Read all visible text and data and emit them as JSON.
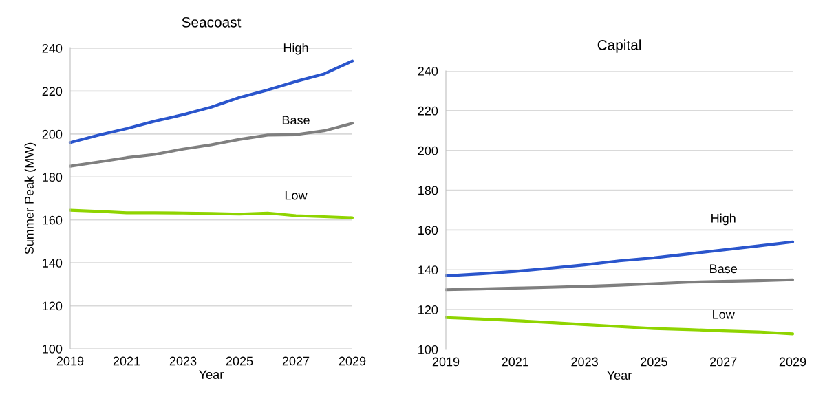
{
  "chart_data": [
    {
      "type": "line",
      "title": "Seacoast",
      "xlabel": "Year",
      "ylabel": "Summer Peak (MW)",
      "x": [
        2019,
        2020,
        2021,
        2022,
        2023,
        2024,
        2025,
        2026,
        2027,
        2028,
        2029
      ],
      "series": [
        {
          "name": "High",
          "color": "#2a55cc",
          "values": [
            196,
            199.5,
            202.5,
            206,
            209,
            212.5,
            217,
            220.5,
            224.5,
            228,
            234
          ]
        },
        {
          "name": "Base",
          "color": "#7f7f7f",
          "values": [
            185,
            187,
            189,
            190.5,
            193,
            195,
            197.5,
            199.5,
            199.7,
            201.5,
            205
          ]
        },
        {
          "name": "Low",
          "color": "#8fd400",
          "values": [
            164.5,
            164,
            163.3,
            163.3,
            163.2,
            163,
            162.7,
            163.2,
            162,
            161.5,
            161
          ]
        }
      ],
      "xlim": [
        2019,
        2029
      ],
      "xticks": [
        2019,
        2021,
        2023,
        2025,
        2027,
        2029
      ],
      "ylim": [
        100,
        240
      ],
      "yticks": [
        100,
        120,
        140,
        160,
        180,
        200,
        220,
        240
      ],
      "grid": "y",
      "legend": false
    },
    {
      "type": "line",
      "title": "Capital",
      "xlabel": "Year",
      "x": [
        2019,
        2020,
        2021,
        2022,
        2023,
        2024,
        2025,
        2026,
        2027,
        2028,
        2029
      ],
      "series": [
        {
          "name": "High",
          "color": "#2a55cc",
          "values": [
            137,
            138,
            139.2,
            140.8,
            142.5,
            144.5,
            146,
            148,
            150,
            152,
            154
          ]
        },
        {
          "name": "Base",
          "color": "#7f7f7f",
          "values": [
            130,
            130.4,
            130.8,
            131.2,
            131.7,
            132.3,
            133,
            133.8,
            134.2,
            134.5,
            135
          ]
        },
        {
          "name": "Low",
          "color": "#8fd400",
          "values": [
            116,
            115.3,
            114.5,
            113.5,
            112.5,
            111.5,
            110.5,
            110,
            109.3,
            108.8,
            107.8
          ]
        }
      ],
      "xlim": [
        2019,
        2029
      ],
      "xticks": [
        2019,
        2021,
        2023,
        2025,
        2027,
        2029
      ],
      "ylim": [
        100,
        240
      ],
      "yticks": [
        100,
        120,
        140,
        160,
        180,
        200,
        220,
        240
      ],
      "grid": "y",
      "legend": false
    }
  ]
}
